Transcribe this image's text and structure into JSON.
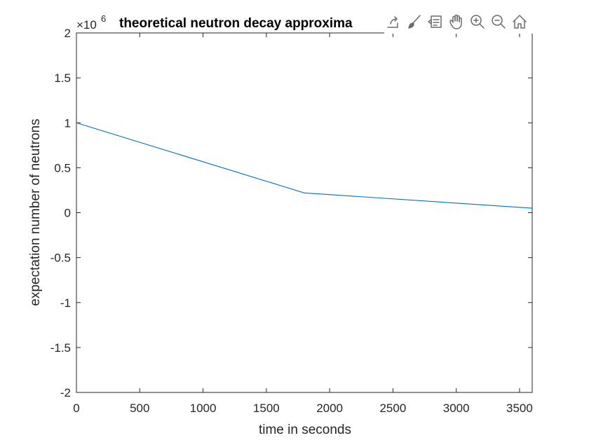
{
  "chart_data": {
    "type": "line",
    "title": "theoretical neutron decay approxima",
    "xlabel": "time in seconds",
    "ylabel": "expectation number of neutrons",
    "exponent_base": "×10",
    "exponent_power": "6",
    "xlim": [
      0,
      3600
    ],
    "ylim": [
      -2,
      2
    ],
    "y_scale": 1000000,
    "xticks": [
      0,
      500,
      1000,
      1500,
      2000,
      2500,
      3000,
      3500
    ],
    "xtick_labels": [
      "0",
      "500",
      "1000",
      "1500",
      "2000",
      "2500",
      "3000",
      "3500"
    ],
    "yticks": [
      -2,
      -1.5,
      -1,
      -0.5,
      0,
      0.5,
      1,
      1.5,
      2
    ],
    "ytick_labels": [
      "-2",
      "-1.5",
      "-1",
      "-0.5",
      "0",
      "0.5",
      "1",
      "1.5",
      "2"
    ],
    "series": [
      {
        "color": "#0072BD",
        "x": [
          0,
          1800,
          3600
        ],
        "y": [
          1000000,
          220000,
          50000
        ]
      }
    ],
    "grid": false,
    "box": true
  },
  "toolbar": {
    "icons": [
      "export-icon",
      "brush-icon",
      "data-tips-icon",
      "pan-hand-icon",
      "zoom-in-icon",
      "zoom-out-icon",
      "home-icon"
    ]
  }
}
